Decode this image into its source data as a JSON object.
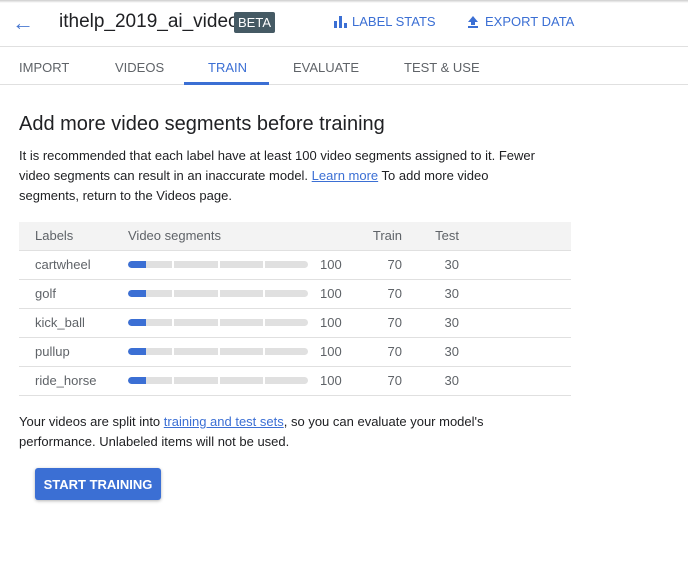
{
  "header": {
    "title": "ithelp_2019_ai_video",
    "badge": "BETA",
    "label_stats": "LABEL STATS",
    "export_data": "EXPORT DATA"
  },
  "tabs": [
    {
      "label": "IMPORT"
    },
    {
      "label": "VIDEOS"
    },
    {
      "label": "TRAIN",
      "active": true
    },
    {
      "label": "EVALUATE"
    },
    {
      "label": "TEST & USE"
    }
  ],
  "main": {
    "heading": "Add more video segments before training",
    "desc_1": "It is recommended that each label have at least 100 video segments assigned to it. Fewer video segments can result in an inaccurate model. ",
    "learn_more": "Learn more",
    "desc_2": " To add more video segments, return to the Videos page.",
    "table": {
      "headers": [
        "Labels",
        "Video segments",
        "Train",
        "Test"
      ],
      "rows": [
        {
          "label": "cartwheel",
          "segments": "100",
          "progress": 0.1,
          "train": "70",
          "test": "30"
        },
        {
          "label": "golf",
          "segments": "100",
          "progress": 0.1,
          "train": "70",
          "test": "30"
        },
        {
          "label": "kick_ball",
          "segments": "100",
          "progress": 0.1,
          "train": "70",
          "test": "30"
        },
        {
          "label": "pullup",
          "segments": "100",
          "progress": 0.1,
          "train": "70",
          "test": "30"
        },
        {
          "label": "ride_horse",
          "segments": "100",
          "progress": 0.1,
          "train": "70",
          "test": "30"
        }
      ]
    },
    "foot_1": "Your videos are split into ",
    "foot_link": "training and test sets",
    "foot_2": ", so you can evaluate your model's performance. Unlabeled items will not be used.",
    "start_button": "START TRAINING"
  },
  "colors": {
    "accent": "#3b6fd4",
    "badge": "#455a64"
  }
}
